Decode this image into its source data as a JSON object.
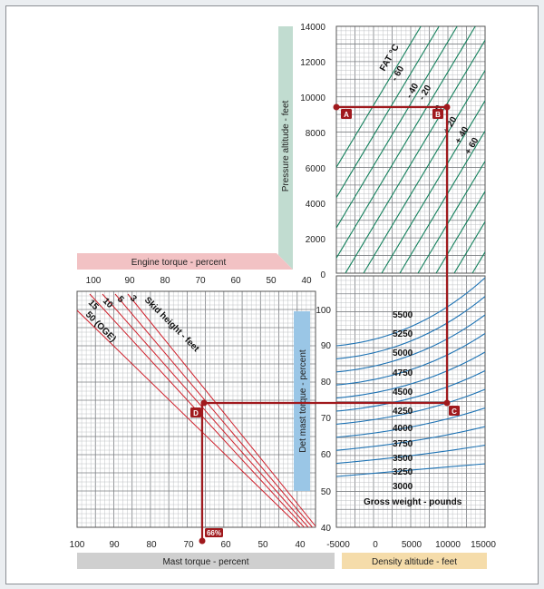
{
  "colors": {
    "grid_major": "#7c7f83",
    "grid_minor": "#b9bcbf",
    "fat_lines": "#13805c",
    "weight_lines": "#1e73b4",
    "skid_lines": "#cf1f2a",
    "path": "#a0191d",
    "pressure_band": "#c1dcd0",
    "engine_band": "#f2c2c4",
    "det_band": "#9ac6e6",
    "mast_band": "#cfcfcf",
    "density_band": "#f5dcaa"
  },
  "chart_data": {
    "type": "line",
    "panels": {
      "pressure_altitude": {
        "ylabel": "Pressure altitude - feet",
        "y_ticks": [
          "0",
          "2000",
          "4000",
          "6000",
          "8000",
          "10000",
          "12000",
          "14000"
        ],
        "ylim": [
          0,
          14000
        ],
        "series_label": "FAT °C",
        "series": [
          {
            "name": "- 60"
          },
          {
            "name": "- 40"
          },
          {
            "name": "- 20"
          },
          {
            "name": "0"
          },
          {
            "name": "+ 20"
          },
          {
            "name": "+ 40"
          },
          {
            "name": "+ 60"
          }
        ]
      },
      "engine_torque": {
        "xlabel": "Engine torque - percent",
        "x_ticks": [
          "100",
          "90",
          "80",
          "70",
          "60",
          "50",
          "40"
        ],
        "xlim": [
          100,
          40
        ]
      },
      "skid_height": {
        "label": "Skid height - feet",
        "series": [
          {
            "name": "50 (OGE)"
          },
          {
            "name": "15"
          },
          {
            "name": "10"
          },
          {
            "name": "5"
          },
          {
            "name": "3"
          }
        ]
      },
      "det_mast_torque": {
        "ylabel": "Det mast torque - percent",
        "y_ticks": [
          "40",
          "50",
          "60",
          "70",
          "80",
          "90",
          "100"
        ],
        "ylim": [
          40,
          100
        ]
      },
      "gross_weight": {
        "label": "Gross weight - pounds",
        "series": [
          {
            "name": "5500"
          },
          {
            "name": "5250"
          },
          {
            "name": "5000"
          },
          {
            "name": "4750"
          },
          {
            "name": "4500"
          },
          {
            "name": "4250"
          },
          {
            "name": "4000"
          },
          {
            "name": "3750"
          },
          {
            "name": "3500"
          },
          {
            "name": "3250"
          },
          {
            "name": "3000"
          }
        ]
      },
      "mast_torque": {
        "xlabel": "Mast torque - percent",
        "x_ticks": [
          "100",
          "90",
          "80",
          "70",
          "60",
          "50",
          "40"
        ],
        "xlim": [
          100,
          35
        ]
      },
      "density_altitude": {
        "xlabel": "Density altitude - feet",
        "x_ticks": [
          "-5000",
          "0",
          "5000",
          "10000",
          "15000"
        ],
        "xlim": [
          -5000,
          15000
        ]
      }
    },
    "example_path": {
      "points": [
        "A",
        "B",
        "C",
        "D"
      ],
      "pressure_altitude": 9400,
      "det_mast_torque": 74,
      "density_altitude": 10000,
      "result_label": "66%"
    }
  }
}
